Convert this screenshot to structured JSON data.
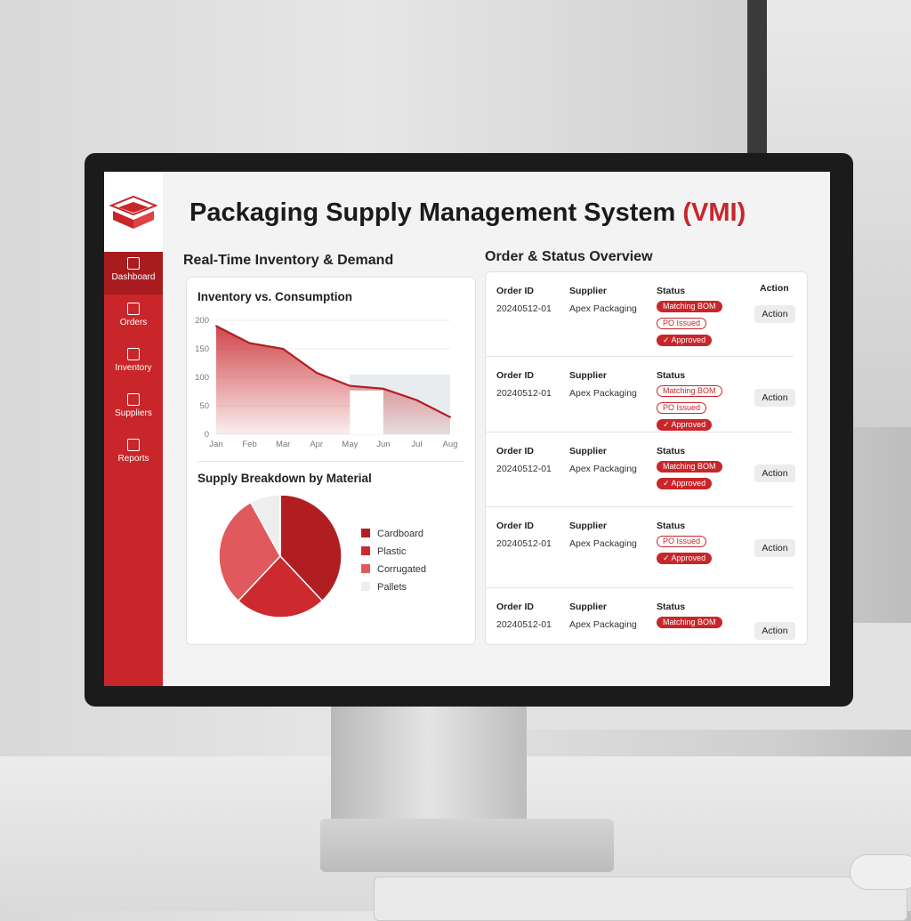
{
  "app": {
    "title": "Packaging Supply Management System",
    "title_suffix": "(VMI)",
    "brand_color": "#c8262a"
  },
  "sidebar": {
    "items": [
      {
        "label": "Dashboard",
        "icon": "dashboard-icon",
        "active": true
      },
      {
        "label": "Orders",
        "icon": "clipboard-icon"
      },
      {
        "label": "Inventory",
        "icon": "box-icon"
      },
      {
        "label": "Suppliers",
        "icon": "users-icon"
      },
      {
        "label": "Reports",
        "icon": "document-icon"
      }
    ]
  },
  "left": {
    "heading": "Real-Time Inventory & Demand"
  },
  "right": {
    "heading": "Order & Status Overview"
  },
  "chart_data": [
    {
      "type": "area",
      "title": "Inventory vs. Consumption",
      "categories": [
        "Jan",
        "Feb",
        "Mar",
        "Apr",
        "May",
        "Jun",
        "Jul",
        "Aug"
      ],
      "values": [
        190,
        160,
        150,
        108,
        85,
        80,
        60,
        30
      ],
      "ylim": [
        0,
        200
      ],
      "yticks": [
        0,
        50,
        100,
        150,
        200
      ],
      "grid": true,
      "band": {
        "from": "May",
        "to": "Aug",
        "value": 105
      }
    },
    {
      "type": "pie",
      "title": "Supply Breakdown by Material",
      "categories": [
        "Cardboard",
        "Plastic",
        "Corrugated",
        "Pallets"
      ],
      "values": [
        38,
        24,
        30,
        8
      ],
      "colors": [
        "#b01e22",
        "#cc2a2e",
        "#e05a5d",
        "#eeeeee"
      ],
      "legend": "right"
    }
  ],
  "orders": {
    "headers": {
      "id": "Order ID",
      "supplier": "Supplier",
      "status": "Status",
      "action": "Action"
    },
    "rows": [
      {
        "id": "20240512-01",
        "supplier": "Apex Packaging",
        "statuses": [
          {
            "label": "Matching BOM",
            "style": "solid"
          },
          {
            "label": "PO Issued",
            "style": "outline"
          },
          {
            "label": "✓ Approved",
            "style": "solid"
          }
        ],
        "action": "Action"
      },
      {
        "id": "20240512-01",
        "supplier": "Apex Packaging",
        "statuses": [
          {
            "label": "Matching BOM",
            "style": "outline"
          },
          {
            "label": "PO Issued",
            "style": "outline"
          },
          {
            "label": "✓ Approved",
            "style": "solid"
          }
        ],
        "action": "Action"
      },
      {
        "id": "20240512-01",
        "supplier": "Apex Packaging",
        "statuses": [
          {
            "label": "Matching BOM",
            "style": "solid"
          },
          {
            "label": "✓ Approved",
            "style": "solid"
          }
        ],
        "action": "Action"
      },
      {
        "id": "20240512-01",
        "supplier": "Apex Packaging",
        "statuses": [
          {
            "label": "PO Issued",
            "style": "outline"
          },
          {
            "label": "✓ Approved",
            "style": "solid"
          }
        ],
        "action": "Action"
      },
      {
        "id": "20240512-01",
        "supplier": "Apex Packaging",
        "statuses": [
          {
            "label": "Matching BOM",
            "style": "solid"
          }
        ],
        "action": "Action"
      }
    ]
  }
}
